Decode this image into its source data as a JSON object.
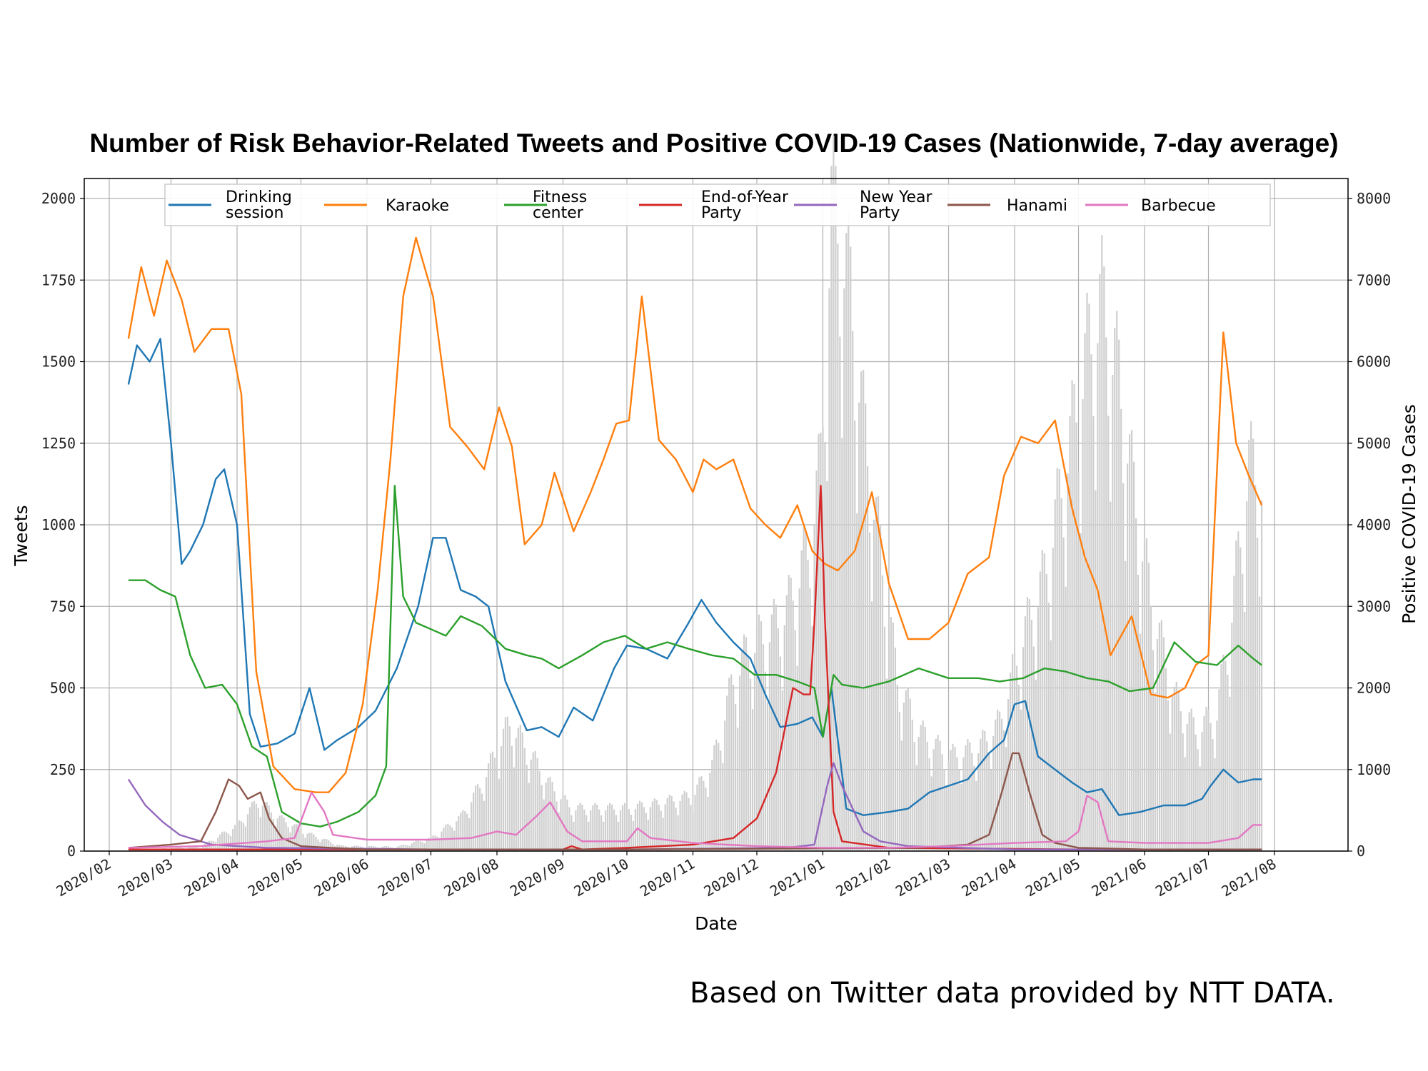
{
  "chart_data": {
    "type": "line",
    "title": "Number of Risk Behavior-Related Tweets and Positive COVID-19 Cases (Nationwide, 7-day average)",
    "xlabel": "Date",
    "ylabel": "Tweets",
    "y2label": "Positive COVID-19 Cases",
    "ylim": [
      0,
      2000
    ],
    "y2lim": [
      0,
      8000
    ],
    "yticks": [
      0,
      250,
      500,
      750,
      1000,
      1250,
      1500,
      1750,
      2000
    ],
    "y2ticks": [
      0,
      1000,
      2000,
      3000,
      4000,
      5000,
      6000,
      7000,
      8000
    ],
    "x_tick_labels": [
      "2020/02",
      "2020/03",
      "2020/04",
      "2020/05",
      "2020/06",
      "2020/07",
      "2020/08",
      "2020/09",
      "2020/10",
      "2020/11",
      "2020/12",
      "2021/01",
      "2021/02",
      "2021/03",
      "2021/04",
      "2021/05",
      "2021/06",
      "2021/07",
      "2021/08"
    ],
    "grid": true,
    "legend_position": "top",
    "series": [
      {
        "name": "Drinking session",
        "color": "#1f77b4",
        "axis": "left",
        "x": [
          "2020-02-10",
          "2020-02-14",
          "2020-02-20",
          "2020-02-25",
          "2020-03-01",
          "2020-03-06",
          "2020-03-10",
          "2020-03-16",
          "2020-03-22",
          "2020-03-26",
          "2020-04-01",
          "2020-04-07",
          "2020-04-12",
          "2020-04-20",
          "2020-04-28",
          "2020-05-05",
          "2020-05-12",
          "2020-05-18",
          "2020-05-28",
          "2020-06-05",
          "2020-06-15",
          "2020-06-25",
          "2020-07-02",
          "2020-07-08",
          "2020-07-15",
          "2020-07-22",
          "2020-07-28",
          "2020-08-05",
          "2020-08-15",
          "2020-08-22",
          "2020-08-30",
          "2020-09-06",
          "2020-09-15",
          "2020-09-25",
          "2020-10-01",
          "2020-10-10",
          "2020-10-20",
          "2020-10-30",
          "2020-11-05",
          "2020-11-12",
          "2020-11-20",
          "2020-11-28",
          "2020-12-05",
          "2020-12-12",
          "2020-12-20",
          "2020-12-27",
          "2021-01-01",
          "2021-01-05",
          "2021-01-12",
          "2021-01-20",
          "2021-02-01",
          "2021-02-10",
          "2021-02-20",
          "2021-03-01",
          "2021-03-10",
          "2021-03-20",
          "2021-03-27",
          "2021-04-01",
          "2021-04-06",
          "2021-04-12",
          "2021-04-20",
          "2021-04-28",
          "2021-05-05",
          "2021-05-12",
          "2021-05-20",
          "2021-05-30",
          "2021-06-10",
          "2021-06-20",
          "2021-06-28",
          "2021-07-02",
          "2021-07-08",
          "2021-07-15",
          "2021-07-22",
          "2021-07-26"
        ],
        "y": [
          1430,
          1550,
          1500,
          1570,
          1250,
          880,
          920,
          1000,
          1140,
          1170,
          1000,
          420,
          320,
          330,
          360,
          500,
          310,
          340,
          380,
          430,
          560,
          750,
          960,
          960,
          800,
          780,
          750,
          520,
          370,
          380,
          350,
          440,
          400,
          560,
          630,
          620,
          590,
          700,
          770,
          700,
          640,
          590,
          480,
          380,
          390,
          410,
          350,
          500,
          130,
          110,
          120,
          130,
          180,
          200,
          220,
          300,
          340,
          450,
          460,
          290,
          250,
          210,
          180,
          190,
          110,
          120,
          140,
          140,
          160,
          200,
          250,
          210,
          220,
          220
        ]
      },
      {
        "name": "Karaoke",
        "color": "#ff7f0e",
        "axis": "left",
        "x": [
          "2020-02-10",
          "2020-02-16",
          "2020-02-22",
          "2020-02-28",
          "2020-03-06",
          "2020-03-12",
          "2020-03-20",
          "2020-03-28",
          "2020-04-03",
          "2020-04-10",
          "2020-04-18",
          "2020-04-28",
          "2020-05-08",
          "2020-05-14",
          "2020-05-22",
          "2020-05-30",
          "2020-06-06",
          "2020-06-12",
          "2020-06-18",
          "2020-06-24",
          "2020-07-02",
          "2020-07-10",
          "2020-07-18",
          "2020-07-26",
          "2020-08-02",
          "2020-08-08",
          "2020-08-14",
          "2020-08-22",
          "2020-08-28",
          "2020-09-06",
          "2020-09-14",
          "2020-09-20",
          "2020-09-26",
          "2020-10-02",
          "2020-10-08",
          "2020-10-16",
          "2020-10-24",
          "2020-11-01",
          "2020-11-06",
          "2020-11-12",
          "2020-11-20",
          "2020-11-28",
          "2020-12-05",
          "2020-12-12",
          "2020-12-20",
          "2020-12-27",
          "2021-01-02",
          "2021-01-08",
          "2021-01-16",
          "2021-01-24",
          "2021-02-01",
          "2021-02-10",
          "2021-02-20",
          "2021-03-01",
          "2021-03-10",
          "2021-03-20",
          "2021-03-27",
          "2021-04-04",
          "2021-04-12",
          "2021-04-20",
          "2021-04-28",
          "2021-05-04",
          "2021-05-10",
          "2021-05-16",
          "2021-05-26",
          "2021-06-04",
          "2021-06-12",
          "2021-06-20",
          "2021-06-25",
          "2021-07-01",
          "2021-07-08",
          "2021-07-14",
          "2021-07-20",
          "2021-07-26"
        ],
        "y": [
          1570,
          1790,
          1640,
          1810,
          1690,
          1530,
          1600,
          1600,
          1400,
          550,
          260,
          190,
          180,
          180,
          240,
          450,
          800,
          1200,
          1700,
          1880,
          1700,
          1300,
          1240,
          1170,
          1360,
          1240,
          940,
          1000,
          1160,
          980,
          1100,
          1200,
          1310,
          1320,
          1700,
          1260,
          1200,
          1100,
          1200,
          1170,
          1200,
          1050,
          1000,
          960,
          1060,
          920,
          880,
          860,
          920,
          1100,
          820,
          650,
          650,
          700,
          850,
          900,
          1150,
          1270,
          1250,
          1320,
          1050,
          900,
          800,
          600,
          720,
          480,
          470,
          500,
          570,
          600,
          1590,
          1250,
          1150,
          1060
        ]
      },
      {
        "name": "Fitness center",
        "color": "#2ca02c",
        "axis": "left",
        "x": [
          "2020-02-10",
          "2020-02-18",
          "2020-02-25",
          "2020-03-03",
          "2020-03-10",
          "2020-03-17",
          "2020-03-25",
          "2020-04-01",
          "2020-04-08",
          "2020-04-15",
          "2020-04-22",
          "2020-05-01",
          "2020-05-10",
          "2020-05-18",
          "2020-05-28",
          "2020-06-05",
          "2020-06-10",
          "2020-06-14",
          "2020-06-18",
          "2020-06-24",
          "2020-07-01",
          "2020-07-08",
          "2020-07-15",
          "2020-07-25",
          "2020-08-05",
          "2020-08-15",
          "2020-08-22",
          "2020-08-30",
          "2020-09-10",
          "2020-09-20",
          "2020-09-30",
          "2020-10-10",
          "2020-10-20",
          "2020-10-30",
          "2020-11-10",
          "2020-11-20",
          "2020-11-30",
          "2020-12-10",
          "2020-12-20",
          "2020-12-28",
          "2021-01-01",
          "2021-01-06",
          "2021-01-10",
          "2021-01-20",
          "2021-02-01",
          "2021-02-15",
          "2021-03-01",
          "2021-03-15",
          "2021-03-25",
          "2021-04-05",
          "2021-04-15",
          "2021-04-25",
          "2021-05-05",
          "2021-05-15",
          "2021-05-25",
          "2021-06-05",
          "2021-06-15",
          "2021-06-25",
          "2021-07-05",
          "2021-07-15",
          "2021-07-22",
          "2021-07-26"
        ],
        "y": [
          830,
          830,
          800,
          780,
          600,
          500,
          510,
          450,
          320,
          290,
          120,
          85,
          75,
          90,
          120,
          170,
          260,
          1120,
          780,
          700,
          680,
          660,
          720,
          690,
          620,
          600,
          590,
          560,
          600,
          640,
          660,
          620,
          640,
          620,
          600,
          590,
          540,
          540,
          520,
          500,
          350,
          540,
          510,
          500,
          520,
          560,
          530,
          530,
          520,
          530,
          560,
          550,
          530,
          520,
          490,
          500,
          640,
          580,
          570,
          630,
          590,
          570
        ]
      },
      {
        "name": "End-of-Year Party",
        "color": "#d62728",
        "axis": "left",
        "x": [
          "2020-02-10",
          "2020-04-01",
          "2020-06-01",
          "2020-08-01",
          "2020-09-01",
          "2020-09-05",
          "2020-09-10",
          "2020-10-01",
          "2020-11-01",
          "2020-11-20",
          "2020-12-01",
          "2020-12-10",
          "2020-12-18",
          "2020-12-23",
          "2020-12-26",
          "2020-12-28",
          "2020-12-31",
          "2021-01-02",
          "2021-01-06",
          "2021-01-10",
          "2021-02-01",
          "2021-05-01",
          "2021-07-26"
        ],
        "y": [
          5,
          5,
          5,
          5,
          5,
          15,
          5,
          10,
          20,
          40,
          100,
          240,
          500,
          480,
          480,
          700,
          1120,
          700,
          120,
          30,
          10,
          5,
          5
        ]
      },
      {
        "name": "New Year Party",
        "color": "#9467bd",
        "axis": "left",
        "x": [
          "2020-02-10",
          "2020-02-18",
          "2020-02-26",
          "2020-03-05",
          "2020-03-20",
          "2020-04-15",
          "2020-07-01",
          "2020-10-01",
          "2020-12-15",
          "2020-12-28",
          "2021-01-03",
          "2021-01-06",
          "2021-01-10",
          "2021-01-15",
          "2021-01-20",
          "2021-01-28",
          "2021-02-10",
          "2021-04-01",
          "2021-07-26"
        ],
        "y": [
          220,
          140,
          90,
          50,
          20,
          10,
          5,
          5,
          10,
          20,
          200,
          270,
          200,
          130,
          60,
          30,
          15,
          5,
          5
        ]
      },
      {
        "name": "Hanami",
        "color": "#8c564b",
        "axis": "left",
        "x": [
          "2020-02-10",
          "2020-03-01",
          "2020-03-15",
          "2020-03-22",
          "2020-03-28",
          "2020-04-02",
          "2020-04-06",
          "2020-04-12",
          "2020-04-16",
          "2020-04-22",
          "2020-05-01",
          "2020-05-15",
          "2020-06-01",
          "2020-10-01",
          "2021-02-15",
          "2021-03-10",
          "2021-03-20",
          "2021-03-26",
          "2021-03-31",
          "2021-04-03",
          "2021-04-08",
          "2021-04-14",
          "2021-04-20",
          "2021-05-01",
          "2021-06-01",
          "2021-07-26"
        ],
        "y": [
          10,
          20,
          30,
          120,
          220,
          200,
          160,
          180,
          100,
          40,
          15,
          10,
          5,
          5,
          10,
          20,
          50,
          180,
          300,
          300,
          180,
          50,
          25,
          10,
          5,
          5
        ]
      },
      {
        "name": "Barbecue",
        "color": "#e377c2",
        "axis": "left",
        "x": [
          "2020-02-10",
          "2020-03-15",
          "2020-04-15",
          "2020-04-28",
          "2020-05-06",
          "2020-05-12",
          "2020-05-16",
          "2020-06-01",
          "2020-07-01",
          "2020-07-20",
          "2020-08-01",
          "2020-08-10",
          "2020-08-20",
          "2020-08-26",
          "2020-09-03",
          "2020-09-10",
          "2020-10-01",
          "2020-10-06",
          "2020-10-12",
          "2020-11-01",
          "2020-12-01",
          "2021-01-01",
          "2021-02-01",
          "2021-03-01",
          "2021-04-01",
          "2021-04-25",
          "2021-05-01",
          "2021-05-05",
          "2021-05-10",
          "2021-05-15",
          "2021-06-01",
          "2021-07-01",
          "2021-07-15",
          "2021-07-22",
          "2021-07-26"
        ],
        "y": [
          10,
          15,
          30,
          40,
          180,
          120,
          50,
          35,
          35,
          40,
          60,
          50,
          110,
          150,
          60,
          30,
          30,
          70,
          40,
          25,
          15,
          10,
          10,
          15,
          25,
          30,
          60,
          170,
          150,
          30,
          25,
          25,
          40,
          80,
          80
        ]
      },
      {
        "name": "Positive COVID-19 Cases",
        "type": "bar",
        "color": "#cfcfcf",
        "axis": "right",
        "x": [
          "2020-02-10",
          "2020-03-15",
          "2020-04-01",
          "2020-04-11",
          "2020-04-20",
          "2020-05-05",
          "2020-05-20",
          "2020-06-15",
          "2020-07-01",
          "2020-07-15",
          "2020-07-25",
          "2020-08-07",
          "2020-08-15",
          "2020-08-25",
          "2020-09-05",
          "2020-09-20",
          "2020-10-01",
          "2020-10-15",
          "2020-11-01",
          "2020-11-10",
          "2020-11-20",
          "2020-11-28",
          "2020-12-05",
          "2020-12-15",
          "2020-12-25",
          "2020-12-31",
          "2021-01-05",
          "2021-01-08",
          "2021-01-14",
          "2021-01-20",
          "2021-01-28",
          "2021-02-05",
          "2021-02-15",
          "2021-03-01",
          "2021-03-15",
          "2021-03-25",
          "2021-04-05",
          "2021-04-15",
          "2021-04-25",
          "2021-05-05",
          "2021-05-12",
          "2021-05-20",
          "2021-05-28",
          "2021-06-05",
          "2021-06-15",
          "2021-06-25",
          "2021-07-05",
          "2021-07-12",
          "2021-07-20",
          "2021-07-26"
        ],
        "y": [
          10,
          50,
          300,
          600,
          400,
          200,
          60,
          50,
          150,
          400,
          800,
          1500,
          1200,
          800,
          500,
          500,
          500,
          550,
          650,
          1000,
          2000,
          2400,
          2500,
          2800,
          3500,
          4500,
          7500,
          7300,
          6500,
          5000,
          3500,
          2000,
          1400,
          1100,
          1200,
          1500,
          2500,
          3200,
          4500,
          5800,
          6400,
          5500,
          4000,
          2800,
          1800,
          1400,
          1600,
          2800,
          4500,
          4300
        ]
      }
    ]
  },
  "legend": [
    {
      "label": [
        "Drinking",
        "session"
      ]
    },
    {
      "label": [
        "Karaoke"
      ]
    },
    {
      "label": [
        "Fitness",
        "center"
      ]
    },
    {
      "label": [
        "End-of-Year",
        "Party"
      ]
    },
    {
      "label": [
        "New Year",
        "Party"
      ]
    },
    {
      "label": [
        "Hanami"
      ]
    },
    {
      "label": [
        "Barbecue"
      ]
    }
  ],
  "footnote": "Based on Twitter data provided by NTT DATA."
}
